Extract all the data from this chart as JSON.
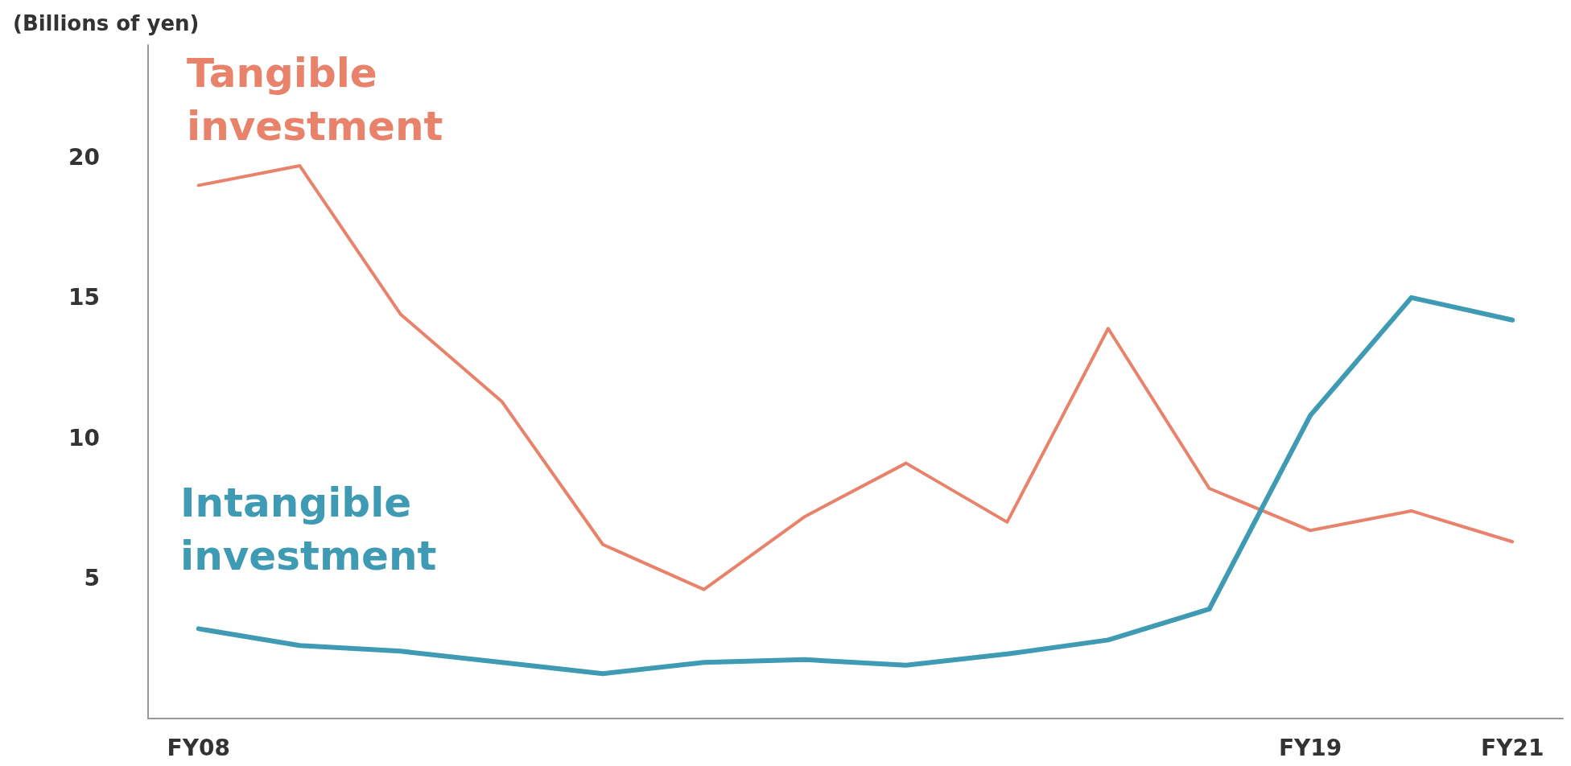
{
  "chart_data": {
    "type": "line",
    "ylabel": "(Billions of yen)",
    "categories": [
      "FY08",
      null,
      null,
      null,
      null,
      null,
      null,
      null,
      null,
      null,
      null,
      "FY19",
      null,
      "FY21"
    ],
    "ylim": [
      0,
      24
    ],
    "yticks": [
      5,
      10,
      15,
      20
    ],
    "grid": false,
    "legend": false,
    "marker": "none",
    "line_style": "solid",
    "series": [
      {
        "name": "Tangible investment",
        "color": "#e8826b",
        "values": [
          19.0,
          19.7,
          14.4,
          11.3,
          6.2,
          4.6,
          7.2,
          9.1,
          7.0,
          13.9,
          8.2,
          6.7,
          7.4,
          6.3
        ]
      },
      {
        "name": "Intangible investment",
        "color": "#3f9ab3",
        "values": [
          3.2,
          2.6,
          2.4,
          2.0,
          1.6,
          2.0,
          2.1,
          1.9,
          2.3,
          2.8,
          3.9,
          10.8,
          15.0,
          14.2
        ]
      }
    ]
  }
}
